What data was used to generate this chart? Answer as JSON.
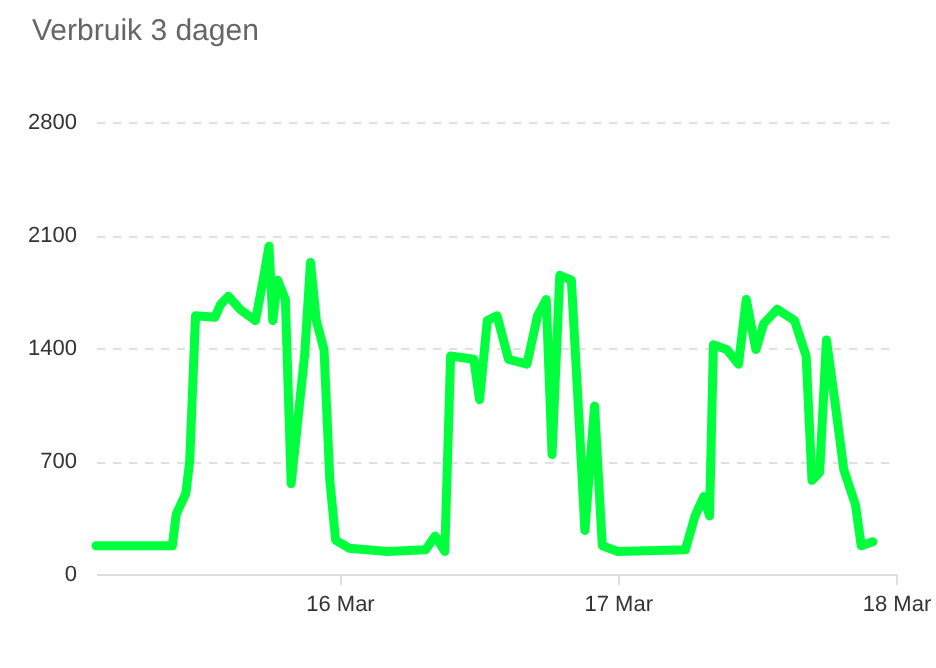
{
  "chart_data": {
    "type": "line",
    "title": "Verbruik 3 dagen",
    "x": [
      "--03-15T03:00",
      "--03-15T09:35",
      "--03-15T09:55",
      "--03-15T10:45",
      "--03-15T11:05",
      "--03-15T11:35",
      "--03-15T13:15",
      "--03-15T13:45",
      "--03-15T14:25",
      "--03-15T15:25",
      "--03-15T16:45",
      "--03-15T17:25",
      "--03-15T17:55",
      "--03-15T18:15",
      "--03-15T18:40",
      "--03-15T19:20",
      "--03-15T19:50",
      "--03-15T21:00",
      "--03-15T21:30",
      "--03-15T22:00",
      "--03-15T22:40",
      "--03-15T23:10",
      "--03-15T23:40",
      "--03-16T00:50",
      "--03-16T04:10",
      "--03-16T07:25",
      "--03-16T08:15",
      "--03-16T09:05",
      "--03-16T09:35",
      "--03-16T11:35",
      "--03-16T12:05",
      "--03-16T12:45",
      "--03-16T13:35",
      "--03-16T14:35",
      "--03-16T16:10",
      "--03-16T17:05",
      "--03-16T17:50",
      "--03-16T18:20",
      "--03-16T19:00",
      "--03-16T20:00",
      "--03-16T20:40",
      "--03-16T21:10",
      "--03-16T22:00",
      "--03-16T22:40",
      "--03-17T00:00",
      "--03-17T05:50",
      "--03-17T06:40",
      "--03-17T07:25",
      "--03-17T07:55",
      "--03-17T08:15",
      "--03-17T09:25",
      "--03-17T10:25",
      "--03-17T11:05",
      "--03-17T11:55",
      "--03-17T12:35",
      "--03-17T13:45",
      "--03-17T15:15",
      "--03-17T16:15",
      "--03-17T16:45",
      "--03-17T17:25",
      "--03-17T18:00",
      "--03-17T18:40",
      "--03-17T19:30",
      "--03-17T20:30",
      "--03-17T21:00",
      "--03-17T22:00"
    ],
    "series": [
      {
        "color": "#00ff3c",
        "values": [
          175,
          175,
          370,
          500,
          700,
          1600,
          1590,
          1670,
          1720,
          1640,
          1570,
          1820,
          2030,
          1570,
          1820,
          1700,
          560,
          1360,
          1930,
          1570,
          1390,
          580,
          210,
          160,
          140,
          150,
          235,
          140,
          1350,
          1330,
          1080,
          1570,
          1600,
          1330,
          1300,
          1600,
          1700,
          740,
          1850,
          1820,
          950,
          270,
          1040,
          175,
          140,
          150,
          360,
          480,
          360,
          1420,
          1390,
          1300,
          1700,
          1390,
          1550,
          1640,
          1570,
          1350,
          580,
          630,
          1450,
          1100,
          645,
          430,
          175,
          200
        ]
      }
    ],
    "xlim": [
      "--03-15T03:00",
      "--03-18T00:00"
    ],
    "xticks": [
      {
        "value": "--03-16",
        "label": "16 Mar"
      },
      {
        "value": "--03-17",
        "label": "17 Mar"
      },
      {
        "value": "--03-18",
        "label": "18 Mar"
      }
    ],
    "ylim": [
      0,
      2800
    ],
    "yticks": [
      0,
      700,
      1400,
      2100,
      2800
    ],
    "grid": "y",
    "line_style": "solid",
    "marker": "none"
  }
}
